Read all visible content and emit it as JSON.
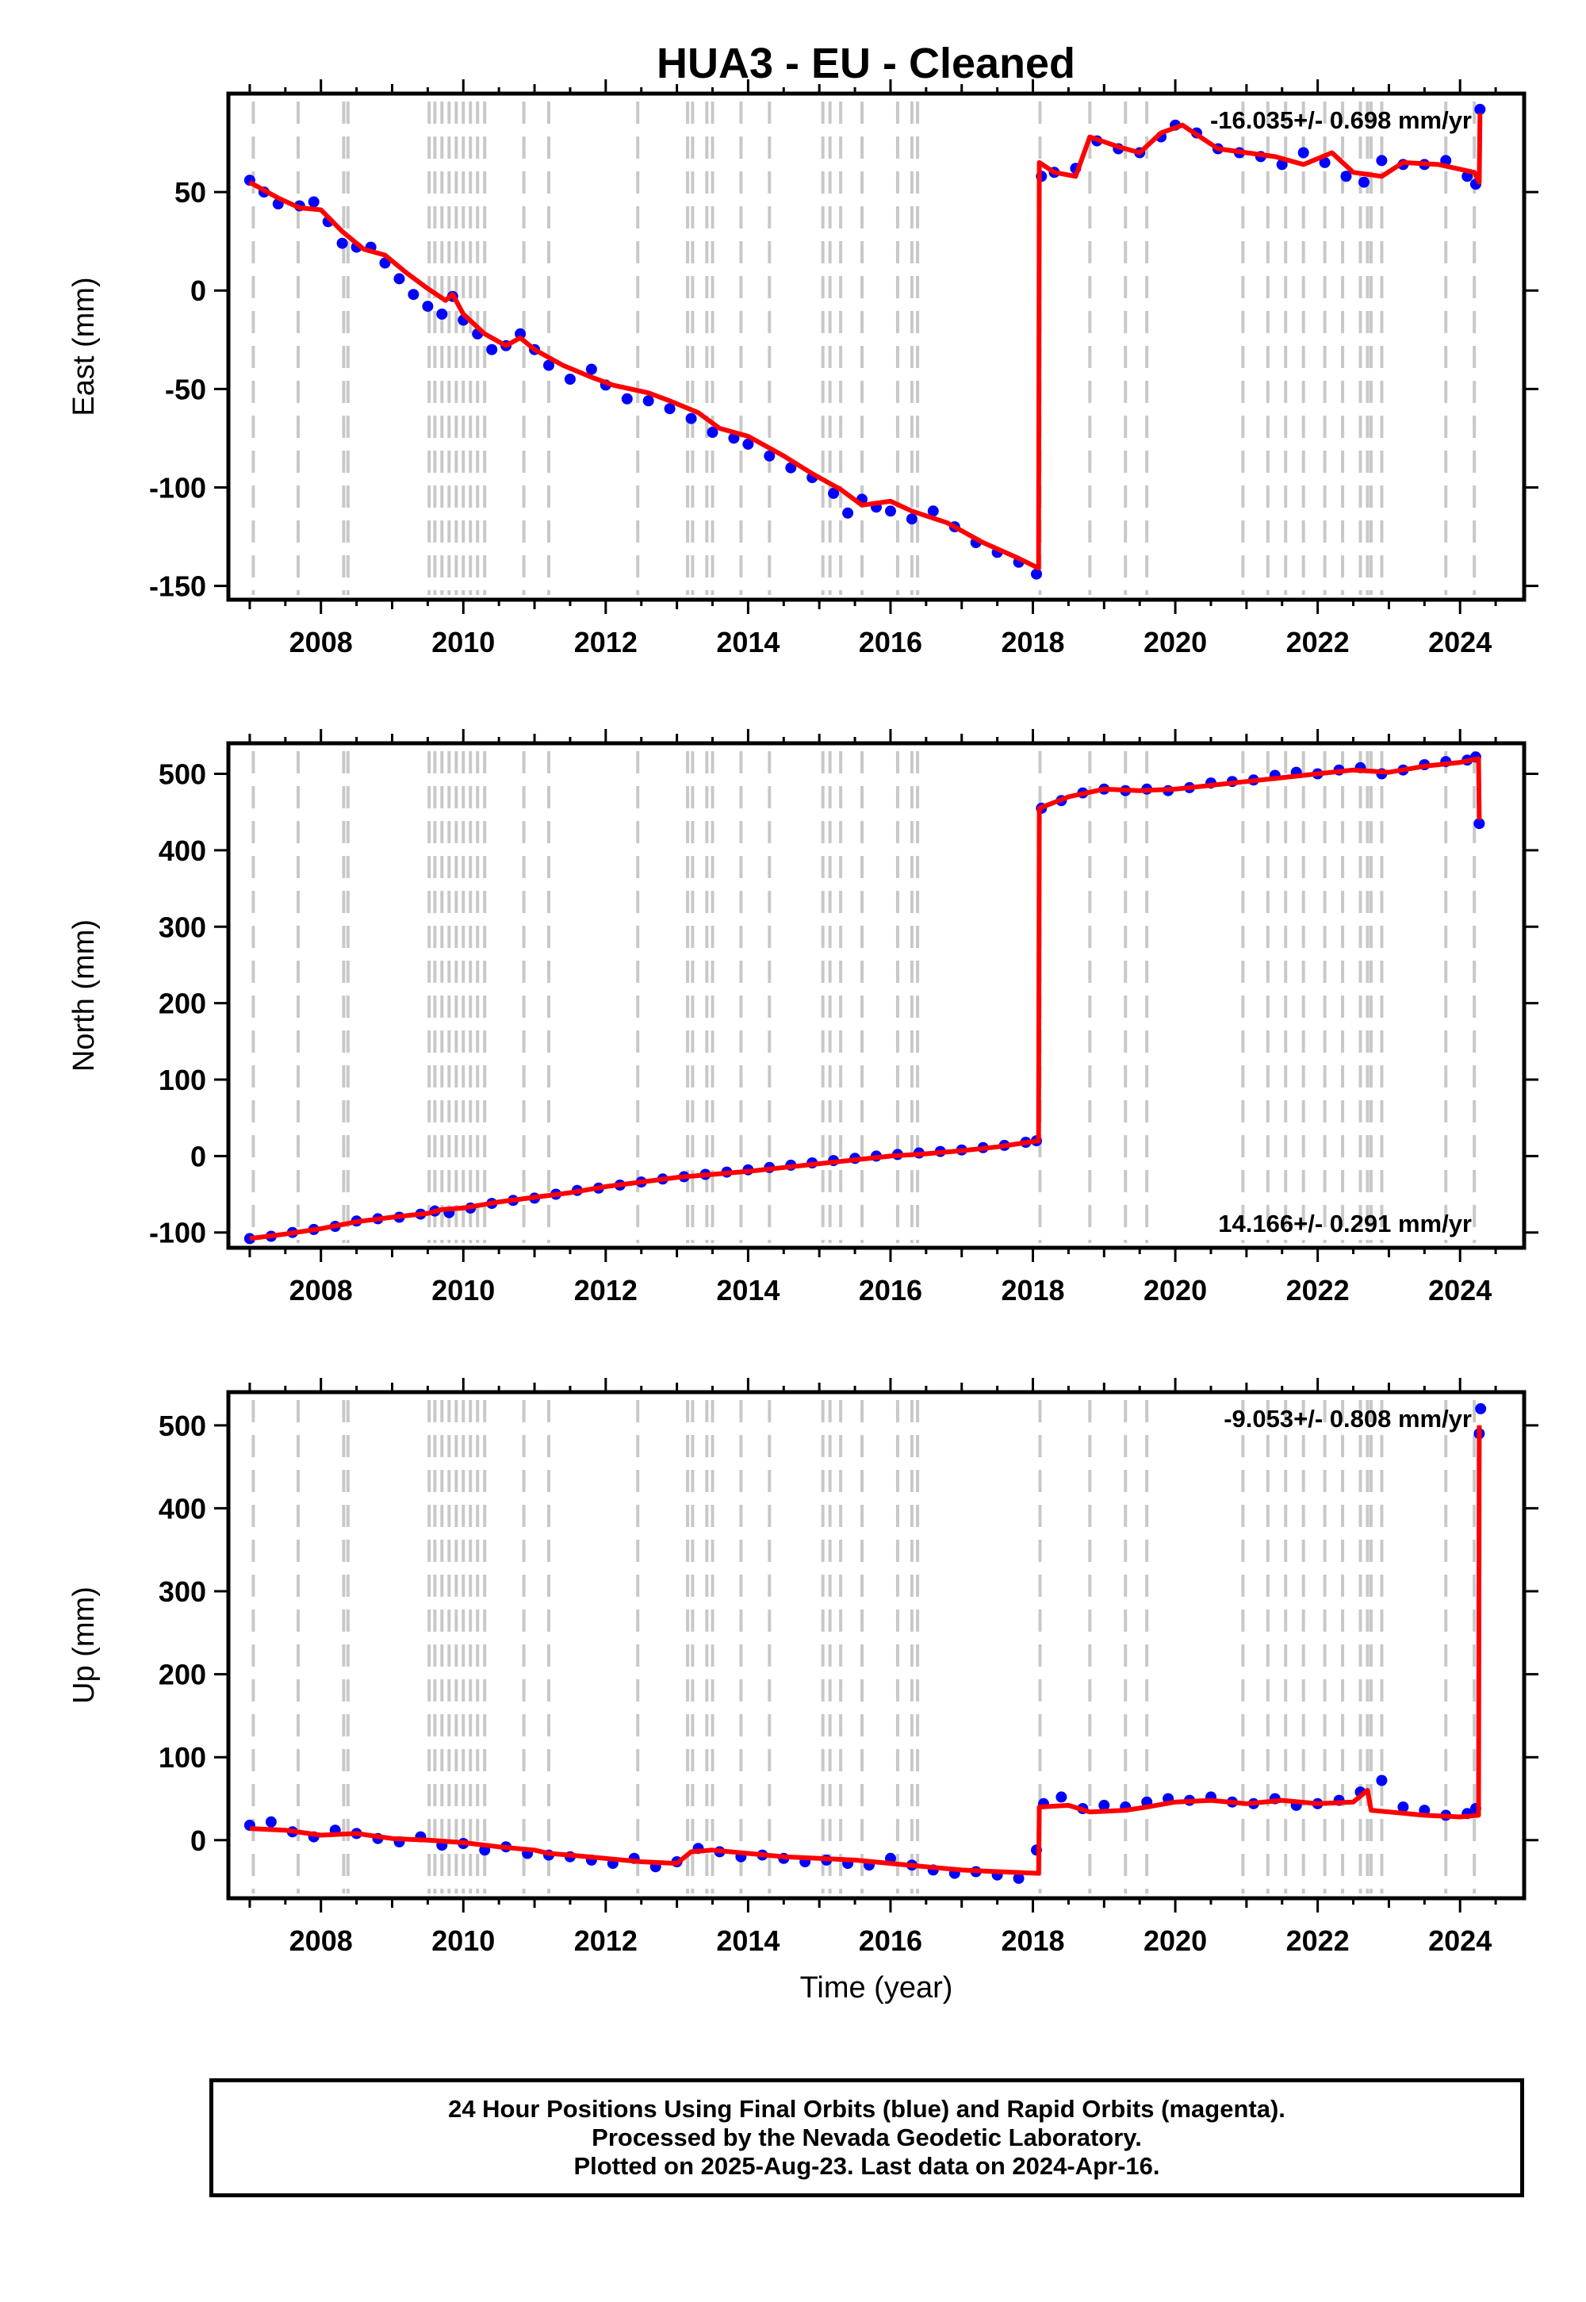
{
  "page": {
    "title": "HUA3  - EU - Cleaned",
    "footer": [
      "24 Hour Positions Using Final Orbits (blue) and Rapid Orbits (magenta).",
      "Processed by the Nevada Geodetic Laboratory.",
      "Plotted on 2025-Aug-23. Last data on 2024-Apr-16."
    ]
  },
  "colors": {
    "data_points": "#0000ff",
    "model_line": "#ff0000",
    "event_lines": "#c8c8c8",
    "frame": "#000000"
  },
  "chart_data": [
    {
      "type": "scatter",
      "title": "HUA3  - EU - Cleaned",
      "ylabel": "East (mm)",
      "xlabel": "",
      "xlim": [
        2006.7,
        2024.9
      ],
      "ylim": [
        -157,
        100
      ],
      "yticks": [
        -150,
        -100,
        -50,
        0,
        50
      ],
      "xticks": [
        2008,
        2010,
        2012,
        2014,
        2016,
        2018,
        2020,
        2022,
        2024
      ],
      "rate_text": "-16.035+/- 0.698 mm/yr",
      "rate_position": "top-right",
      "grid": false,
      "event_lines": [
        2007.05,
        2007.68,
        2008.32,
        2008.38,
        2009.52,
        2009.6,
        2009.7,
        2009.8,
        2009.9,
        2010.0,
        2010.1,
        2010.2,
        2010.3,
        2010.85,
        2011.2,
        2012.45,
        2013.15,
        2013.22,
        2013.42,
        2013.5,
        2013.9,
        2014.3,
        2015.05,
        2015.15,
        2015.3,
        2015.6,
        2016.1,
        2016.3,
        2016.38,
        2018.1,
        2018.8,
        2019.3,
        2019.6,
        2020.95,
        2021.3,
        2021.55,
        2021.8,
        2022.1,
        2022.35,
        2022.6,
        2022.7,
        2022.75,
        2022.9,
        2023.8,
        2024.2
      ],
      "series": [
        {
          "type": "scatter",
          "x": [
            2007.0,
            2007.2,
            2007.4,
            2007.7,
            2007.9,
            2008.1,
            2008.3,
            2008.5,
            2008.7,
            2008.9,
            2009.1,
            2009.3,
            2009.5,
            2009.7,
            2009.85,
            2010.0,
            2010.2,
            2010.4,
            2010.6,
            2010.8,
            2011.0,
            2011.2,
            2011.5,
            2011.8,
            2012.0,
            2012.3,
            2012.6,
            2012.9,
            2013.2,
            2013.5,
            2013.8,
            2014.0,
            2014.3,
            2014.6,
            2014.9,
            2015.2,
            2015.4,
            2015.6,
            2015.8,
            2016.0,
            2016.3,
            2016.6,
            2016.9,
            2017.2,
            2017.5,
            2017.8,
            2018.05,
            2018.12,
            2018.3,
            2018.6,
            2018.9,
            2019.2,
            2019.5,
            2019.8,
            2020.0,
            2020.3,
            2020.6,
            2020.9,
            2021.2,
            2021.5,
            2021.8,
            2022.1,
            2022.4,
            2022.65,
            2022.9,
            2023.2,
            2023.5,
            2023.8,
            2024.1,
            2024.22,
            2024.28
          ],
          "y": [
            56,
            50,
            44,
            43,
            45,
            35,
            24,
            22,
            22,
            14,
            6,
            -2,
            -8,
            -12,
            -3,
            -15,
            -22,
            -30,
            -28,
            -22,
            -30,
            -38,
            -45,
            -40,
            -48,
            -55,
            -56,
            -60,
            -65,
            -72,
            -75,
            -78,
            -84,
            -90,
            -95,
            -103,
            -113,
            -106,
            -110,
            -112,
            -116,
            -112,
            -120,
            -128,
            -133,
            -138,
            -144,
            58,
            60,
            62,
            76,
            72,
            70,
            78,
            84,
            80,
            72,
            70,
            68,
            64,
            70,
            65,
            58,
            55,
            66,
            64,
            64,
            66,
            58,
            54,
            92
          ]
        },
        {
          "type": "line",
          "x": [
            2007.0,
            2007.4,
            2007.7,
            2008.0,
            2008.3,
            2008.6,
            2008.9,
            2009.2,
            2009.5,
            2009.75,
            2009.85,
            2010.0,
            2010.3,
            2010.6,
            2010.8,
            2011.0,
            2011.4,
            2011.8,
            2012.1,
            2012.6,
            2012.9,
            2013.3,
            2013.6,
            2014.0,
            2014.5,
            2014.9,
            2015.3,
            2015.6,
            2016.0,
            2016.3,
            2016.8,
            2017.3,
            2017.8,
            2018.08,
            2018.09,
            2018.3,
            2018.6,
            2018.8,
            2019.2,
            2019.5,
            2019.8,
            2020.1,
            2020.6,
            2021.0,
            2021.4,
            2021.8,
            2022.2,
            2022.5,
            2022.9,
            2023.2,
            2023.7,
            2024.2,
            2024.27,
            2024.28
          ],
          "y": [
            55,
            47,
            42,
            41,
            30,
            21,
            18,
            9,
            1,
            -5,
            -2,
            -12,
            -22,
            -28,
            -24,
            -30,
            -38,
            -44,
            -48,
            -52,
            -56,
            -62,
            -70,
            -74,
            -84,
            -93,
            -101,
            -109,
            -107,
            -112,
            -118,
            -128,
            -136,
            -141,
            65,
            60,
            58,
            78,
            73,
            70,
            80,
            84,
            72,
            70,
            68,
            64,
            70,
            60,
            58,
            65,
            64,
            60,
            55,
            90
          ]
        }
      ]
    },
    {
      "type": "scatter",
      "title": "",
      "ylabel": "North (mm)",
      "xlabel": "",
      "xlim": [
        2006.7,
        2024.9
      ],
      "ylim": [
        -120,
        540
      ],
      "yticks": [
        -100,
        0,
        100,
        200,
        300,
        400,
        500
      ],
      "xticks": [
        2008,
        2010,
        2012,
        2014,
        2016,
        2018,
        2020,
        2022,
        2024
      ],
      "rate_text": "14.166+/- 0.291 mm/yr",
      "rate_position": "bottom-right",
      "grid": false,
      "event_lines": [
        2007.05,
        2007.68,
        2008.32,
        2008.38,
        2009.52,
        2009.6,
        2009.7,
        2009.8,
        2009.9,
        2010.0,
        2010.1,
        2010.2,
        2010.3,
        2010.85,
        2011.2,
        2012.45,
        2013.15,
        2013.22,
        2013.42,
        2013.5,
        2013.9,
        2014.3,
        2015.05,
        2015.15,
        2015.3,
        2015.6,
        2016.1,
        2016.3,
        2016.38,
        2018.1,
        2018.8,
        2019.3,
        2019.6,
        2020.95,
        2021.3,
        2021.55,
        2021.8,
        2022.1,
        2022.35,
        2022.6,
        2022.7,
        2022.75,
        2022.9,
        2023.8,
        2024.2
      ],
      "series": [
        {
          "type": "scatter",
          "x": [
            2007.0,
            2007.3,
            2007.6,
            2007.9,
            2008.2,
            2008.5,
            2008.8,
            2009.1,
            2009.4,
            2009.6,
            2009.8,
            2010.1,
            2010.4,
            2010.7,
            2011.0,
            2011.3,
            2011.6,
            2011.9,
            2012.2,
            2012.5,
            2012.8,
            2013.1,
            2013.4,
            2013.7,
            2014.0,
            2014.3,
            2014.6,
            2014.9,
            2015.2,
            2015.5,
            2015.8,
            2016.1,
            2016.4,
            2016.7,
            2017.0,
            2017.3,
            2017.6,
            2017.9,
            2018.05,
            2018.12,
            2018.4,
            2018.7,
            2019.0,
            2019.3,
            2019.6,
            2019.9,
            2020.2,
            2020.5,
            2020.8,
            2021.1,
            2021.4,
            2021.7,
            2022.0,
            2022.3,
            2022.6,
            2022.9,
            2023.2,
            2023.5,
            2023.8,
            2024.1,
            2024.22,
            2024.27
          ],
          "y": [
            -108,
            -105,
            -100,
            -96,
            -92,
            -85,
            -82,
            -80,
            -76,
            -72,
            -74,
            -68,
            -62,
            -58,
            -55,
            -50,
            -45,
            -42,
            -38,
            -34,
            -30,
            -27,
            -24,
            -21,
            -18,
            -15,
            -12,
            -9,
            -6,
            -3,
            0,
            2,
            4,
            6,
            8,
            11,
            14,
            18,
            20,
            455,
            465,
            475,
            480,
            478,
            480,
            478,
            482,
            488,
            490,
            492,
            498,
            502,
            500,
            505,
            508,
            500,
            505,
            512,
            516,
            518,
            522,
            435
          ]
        },
        {
          "type": "line",
          "x": [
            2007.0,
            2007.5,
            2008.0,
            2008.5,
            2009.0,
            2009.5,
            2009.7,
            2010.0,
            2010.5,
            2011.0,
            2011.5,
            2012.0,
            2012.5,
            2013.0,
            2013.5,
            2014.0,
            2014.5,
            2015.0,
            2015.5,
            2016.0,
            2016.5,
            2017.0,
            2017.5,
            2018.08,
            2018.09,
            2018.5,
            2019.0,
            2019.5,
            2020.0,
            2020.5,
            2021.0,
            2021.5,
            2022.0,
            2022.5,
            2023.0,
            2023.5,
            2024.0,
            2024.26,
            2024.27
          ],
          "y": [
            -108,
            -102,
            -95,
            -86,
            -80,
            -75,
            -70,
            -68,
            -60,
            -54,
            -48,
            -40,
            -34,
            -28,
            -24,
            -20,
            -15,
            -10,
            -5,
            0,
            3,
            7,
            12,
            20,
            455,
            470,
            480,
            478,
            480,
            485,
            490,
            495,
            500,
            505,
            502,
            510,
            515,
            520,
            440
          ]
        }
      ]
    },
    {
      "type": "scatter",
      "title": "",
      "ylabel": "Up (mm)",
      "xlabel": "Time (year)",
      "xlim": [
        2006.7,
        2024.9
      ],
      "ylim": [
        -70,
        540
      ],
      "yticks": [
        0,
        100,
        200,
        300,
        400,
        500
      ],
      "xticks": [
        2008,
        2010,
        2012,
        2014,
        2016,
        2018,
        2020,
        2022,
        2024
      ],
      "rate_text": "-9.053+/- 0.808 mm/yr",
      "rate_position": "top-right",
      "grid": false,
      "event_lines": [
        2007.05,
        2007.68,
        2008.32,
        2008.38,
        2009.52,
        2009.6,
        2009.7,
        2009.8,
        2009.9,
        2010.0,
        2010.1,
        2010.2,
        2010.3,
        2010.85,
        2011.2,
        2012.45,
        2013.15,
        2013.22,
        2013.42,
        2013.5,
        2013.9,
        2014.3,
        2015.05,
        2015.15,
        2015.3,
        2015.6,
        2016.1,
        2016.3,
        2016.38,
        2018.1,
        2018.8,
        2019.3,
        2019.6,
        2020.95,
        2021.3,
        2021.55,
        2021.8,
        2022.1,
        2022.35,
        2022.6,
        2022.7,
        2022.75,
        2022.9,
        2023.8,
        2024.2
      ],
      "series": [
        {
          "type": "scatter",
          "x": [
            2007.0,
            2007.3,
            2007.6,
            2007.9,
            2008.2,
            2008.5,
            2008.8,
            2009.1,
            2009.4,
            2009.7,
            2010.0,
            2010.3,
            2010.6,
            2010.9,
            2011.2,
            2011.5,
            2011.8,
            2012.1,
            2012.4,
            2012.7,
            2013.0,
            2013.3,
            2013.6,
            2013.9,
            2014.2,
            2014.5,
            2014.8,
            2015.1,
            2015.4,
            2015.7,
            2016.0,
            2016.3,
            2016.6,
            2016.9,
            2017.2,
            2017.5,
            2017.8,
            2018.05,
            2018.15,
            2018.4,
            2018.7,
            2019.0,
            2019.3,
            2019.6,
            2019.9,
            2020.2,
            2020.5,
            2020.8,
            2021.1,
            2021.4,
            2021.7,
            2022.0,
            2022.3,
            2022.6,
            2022.9,
            2023.2,
            2023.5,
            2023.8,
            2024.1,
            2024.22,
            2024.27,
            2024.29
          ],
          "y": [
            18,
            22,
            10,
            4,
            12,
            8,
            2,
            -2,
            4,
            -6,
            -4,
            -12,
            -8,
            -16,
            -18,
            -20,
            -24,
            -28,
            -22,
            -32,
            -26,
            -10,
            -14,
            -20,
            -18,
            -22,
            -26,
            -24,
            -28,
            -30,
            -22,
            -30,
            -36,
            -40,
            -38,
            -42,
            -46,
            -12,
            44,
            52,
            38,
            42,
            40,
            46,
            50,
            48,
            52,
            46,
            44,
            50,
            42,
            44,
            48,
            58,
            72,
            40,
            36,
            30,
            32,
            38,
            490,
            520
          ]
        },
        {
          "type": "line",
          "x": [
            2007.0,
            2007.5,
            2008.0,
            2008.5,
            2009.0,
            2009.5,
            2010.0,
            2010.5,
            2011.0,
            2011.2,
            2011.5,
            2012.0,
            2012.5,
            2013.0,
            2013.2,
            2013.5,
            2014.0,
            2014.5,
            2015.0,
            2015.5,
            2016.0,
            2016.5,
            2017.0,
            2017.5,
            2018.08,
            2018.09,
            2018.5,
            2018.8,
            2019.3,
            2019.6,
            2020.0,
            2020.5,
            2021.0,
            2021.5,
            2022.0,
            2022.5,
            2022.7,
            2022.75,
            2023.0,
            2023.5,
            2024.0,
            2024.26,
            2024.27
          ],
          "y": [
            14,
            12,
            6,
            8,
            2,
            0,
            -3,
            -8,
            -12,
            -16,
            -18,
            -22,
            -26,
            -28,
            -14,
            -12,
            -16,
            -20,
            -22,
            -24,
            -28,
            -32,
            -36,
            -38,
            -40,
            40,
            42,
            34,
            36,
            40,
            46,
            48,
            44,
            48,
            44,
            46,
            60,
            36,
            34,
            30,
            28,
            30,
            500
          ]
        }
      ]
    }
  ]
}
